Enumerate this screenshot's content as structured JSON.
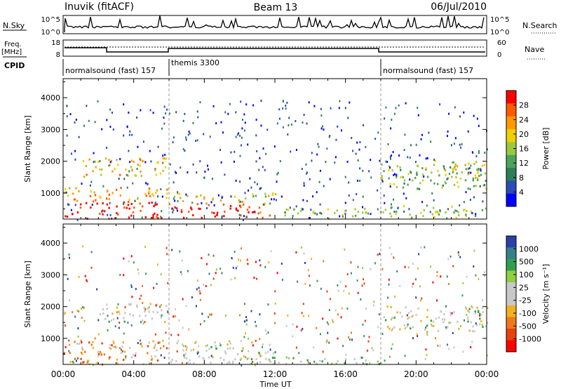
{
  "header": {
    "station": "Inuvik (fitACF)",
    "beam": "Beam 13",
    "date": "06/Jul/2010"
  },
  "status_panel": {
    "nsky_label": "N.Sky",
    "nsky_ticks": [
      "10^5",
      "10^0"
    ],
    "nsearch_label": "N.Search",
    "nsearch_ticks": [
      "10^5",
      "10^0"
    ],
    "freq_label": "Freq.",
    "freq_unit": "[MHz]",
    "freq_ticks": [
      "18",
      "8"
    ],
    "nave_label": "Nave",
    "nave_ticks": [
      "60",
      "0"
    ],
    "cpid_label": "CPID",
    "cpid_segments": [
      {
        "name": "normalsound (fast) 157",
        "start_h": 0,
        "end_h": 6
      },
      {
        "name": "themis 3300",
        "start_h": 6,
        "end_h": 18
      },
      {
        "name": "normalsound (fast) 157",
        "start_h": 18,
        "end_h": 24
      }
    ]
  },
  "chart_data": [
    {
      "type": "heatmap",
      "name": "Power",
      "ylabel": "Slant Range [km]",
      "xlabel": "Time UT",
      "x_ticks": [
        "00:00",
        "04:00",
        "08:00",
        "12:00",
        "16:00",
        "20:00",
        "00:00"
      ],
      "x_range_h": [
        0,
        24
      ],
      "y_ticks": [
        1000,
        2000,
        3000,
        4000
      ],
      "y_range_km": [
        180,
        4600
      ],
      "colorbar_label": "Power [dB]",
      "colorbar_ticks": [
        "28",
        "24",
        "20",
        "16",
        "12",
        "8",
        "4"
      ],
      "colorbar_colors": [
        "#ff0000",
        "#ff5a00",
        "#ff9900",
        "#f0cf00",
        "#9bc83c",
        "#49a45c",
        "#2e7e5a",
        "#2a4db5",
        "#0000ff"
      ],
      "backscatter_bands": [
        {
          "t0": 0,
          "t1": 6,
          "r0": 180,
          "r1": 700,
          "level": 0.95
        },
        {
          "t0": 0,
          "t1": 6,
          "r0": 700,
          "r1": 1150,
          "level": 0.72
        },
        {
          "t0": 6,
          "t1": 10,
          "r0": 180,
          "r1": 650,
          "level": 1.0
        },
        {
          "t0": 10,
          "t1": 12,
          "r0": 180,
          "r1": 650,
          "level": 0.85
        },
        {
          "t0": 6,
          "t1": 12,
          "r0": 650,
          "r1": 1000,
          "level": 0.55
        },
        {
          "t0": 12,
          "t1": 18,
          "r0": 180,
          "r1": 500,
          "level": 0.45
        },
        {
          "t0": 18,
          "t1": 24,
          "r0": 180,
          "r1": 600,
          "level": 0.5
        },
        {
          "t0": 1,
          "t1": 6,
          "r0": 1500,
          "r1": 2100,
          "level": 0.62
        },
        {
          "t0": 18,
          "t1": 24,
          "r0": 1100,
          "r1": 2000,
          "level": 0.45
        },
        {
          "t0": 21.5,
          "t1": 24,
          "r0": 1400,
          "r1": 1900,
          "level": 0.6
        }
      ]
    },
    {
      "type": "heatmap",
      "name": "Velocity",
      "ylabel": "Slant Range [km]",
      "xlabel": "Time UT",
      "x_ticks": [
        "00:00",
        "04:00",
        "08:00",
        "12:00",
        "16:00",
        "20:00",
        "00:00"
      ],
      "x_range_h": [
        0,
        24
      ],
      "y_ticks": [
        1000,
        2000,
        3000,
        4000
      ],
      "y_range_km": [
        180,
        4600
      ],
      "colorbar_label": "Velocity [m s⁻¹]",
      "colorbar_ticks": [
        "1000",
        "500",
        "100",
        "25",
        "-25",
        "-100",
        "-500",
        "-1000"
      ],
      "colorbar_colors": [
        "#2940a8",
        "#3a7f8c",
        "#2fa050",
        "#8fd040",
        "#c8c8c8",
        "#c8c8c8",
        "#f2b020",
        "#f07818",
        "#e84010",
        "#ff0000"
      ],
      "backscatter_bands": [
        {
          "t0": 0,
          "t1": 6,
          "r0": 180,
          "r1": 900,
          "level": "orange"
        },
        {
          "t0": 6,
          "t1": 12,
          "r0": 180,
          "r1": 900,
          "level": "gray"
        },
        {
          "t0": 9,
          "t1": 18,
          "r0": 180,
          "r1": 400,
          "level": "green"
        },
        {
          "t0": 2,
          "t1": 6,
          "r0": 1500,
          "r1": 2100,
          "level": "gray"
        },
        {
          "t0": 18,
          "t1": 24,
          "r0": 1200,
          "r1": 2000,
          "level": "gray"
        }
      ]
    }
  ]
}
